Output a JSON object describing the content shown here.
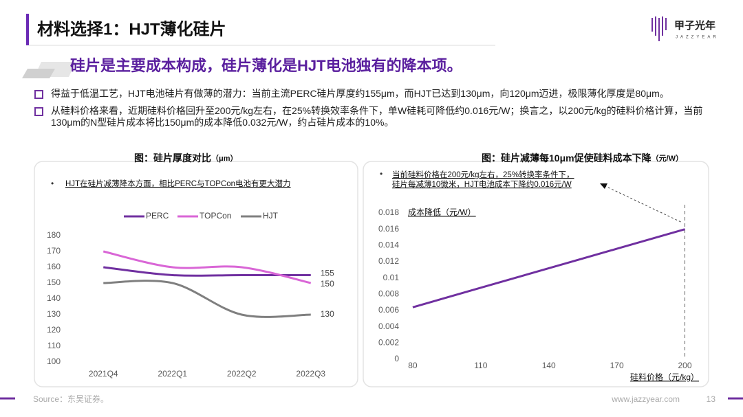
{
  "header": {
    "title": "材料选择1：HJT薄化硅片",
    "subtitle": "硅片是主要成本构成，硅片薄化是HJT电池独有的降本项。"
  },
  "logo": {
    "name": "甲子光年",
    "tagline": "JAZZYEAR"
  },
  "bullets": [
    "得益于低温工艺，HJT电池硅片有做薄的潜力：当前主流PERC硅片厚度约155μm，而HJT已达到130μm，向120μm迈进，极限薄化厚度是80μm。",
    "从硅料价格来看，近期硅料价格回升至200元/kg左右，在25%转换效率条件下，单W硅耗可降低约0.016元/W；换言之，以200元/kg的硅料价格计算，当前130μm的N型硅片成本将比150μm的成本降低0.032元/W，约占硅片成本的10%。"
  ],
  "chart_data": [
    {
      "type": "line",
      "title": "图：硅片厚度对比",
      "unit": "（μm）",
      "note": "HJT在硅片减薄降本方面，相比PERC与TOPCon电池有更大潜力",
      "categories": [
        "2021Q4",
        "2022Q1",
        "2022Q2",
        "2022Q3"
      ],
      "series": [
        {
          "name": "PERC",
          "color": "#7030a0",
          "values": [
            160,
            155,
            155,
            155
          ]
        },
        {
          "name": "TOPCon",
          "color": "#d966d6",
          "values": [
            170,
            160,
            160,
            150
          ]
        },
        {
          "name": "HJT",
          "color": "#7f7f7f",
          "values": [
            150,
            150,
            130,
            130
          ]
        }
      ],
      "ylim": [
        100,
        180
      ],
      "yticks": [
        100,
        110,
        120,
        130,
        140,
        150,
        160,
        170,
        180
      ],
      "smooth": true,
      "legend": "top"
    },
    {
      "type": "line",
      "title": "图：硅片减薄每10μm促使硅料成本下降",
      "unit": "（元/W）",
      "annotation": [
        "当前硅料价格在200元/kg左右，25%转换率条件下，",
        "硅片每减薄10微米，HJT电池成本下降约0.016元/W"
      ],
      "x_label": "硅料价格（元/kg）",
      "y_label": "成本降低（元/W）",
      "x": [
        80,
        110,
        140,
        170,
        200
      ],
      "series": [
        {
          "name": "成本降低",
          "color": "#7030a0",
          "values": [
            0.0064,
            0.0088,
            0.0112,
            0.0136,
            0.016
          ]
        }
      ],
      "xlim": [
        77.9,
        205
      ],
      "xticks": [
        80,
        110,
        140,
        170,
        200
      ],
      "ylim": [
        0,
        0.018
      ],
      "yticks": [
        0,
        0.002,
        0.004,
        0.006,
        0.008,
        0.01,
        0.012,
        0.014,
        0.016,
        0.018
      ],
      "smooth": false
    }
  ],
  "footer": {
    "source": "Source：东吴证券。",
    "website": "www.jazzyear.com",
    "page": "13"
  }
}
